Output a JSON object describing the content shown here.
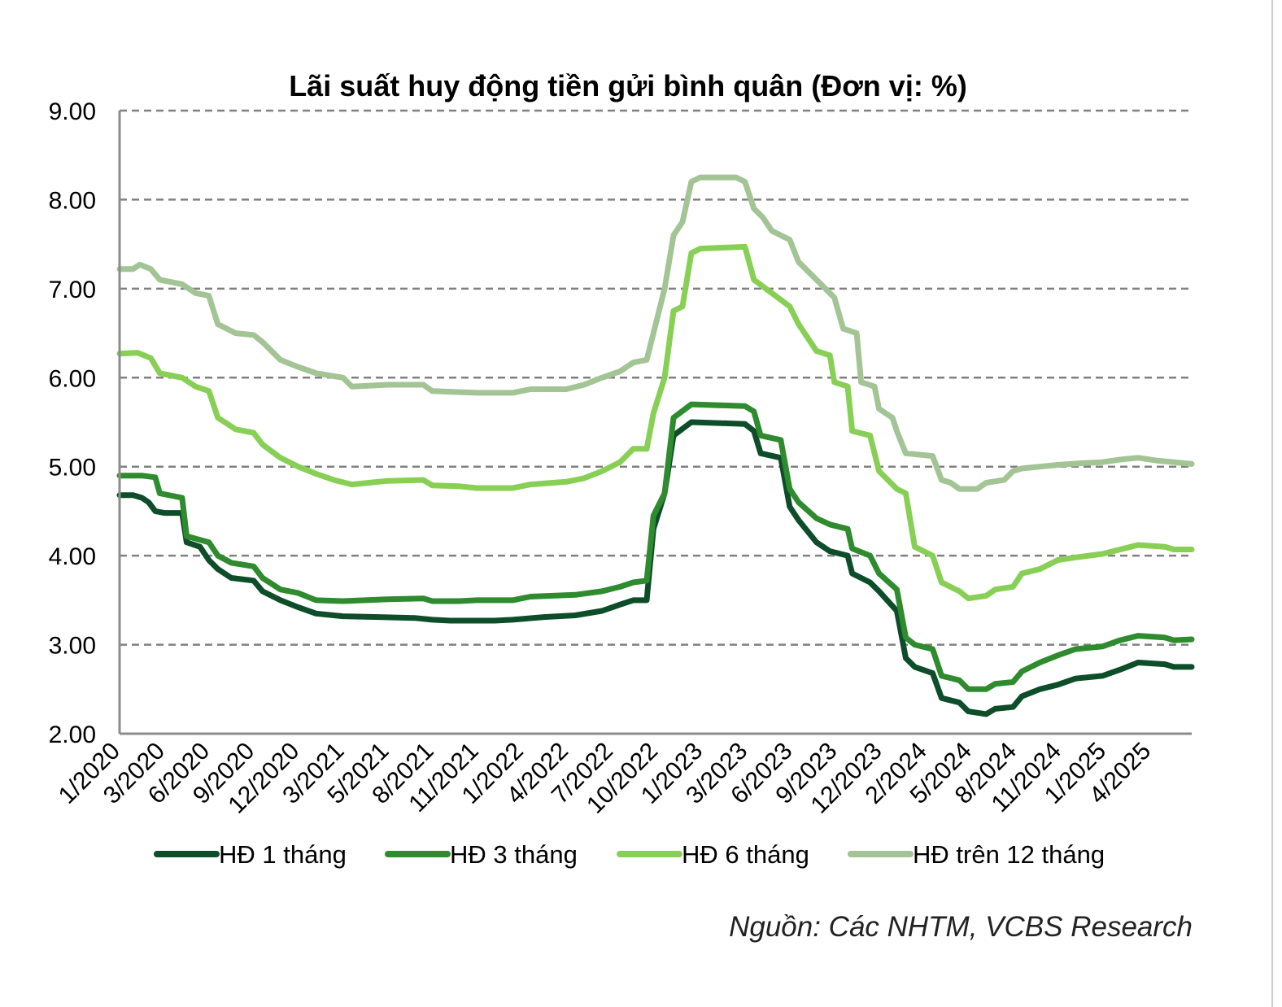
{
  "chart_data": {
    "type": "line",
    "title": "Lãi suất huy động tiền gửi bình quân (Đơn vị: %)",
    "xlabel": "",
    "ylabel": "",
    "ylim": [
      2.0,
      9.0
    ],
    "yticks": [
      "2.00",
      "3.00",
      "4.00",
      "5.00",
      "6.00",
      "7.00",
      "8.00",
      "9.00"
    ],
    "grid": true,
    "legend_position": "bottom",
    "x_tick_labels": [
      "1/2020",
      "3/2020",
      "6/2020",
      "9/2020",
      "12/2020",
      "3/2021",
      "5/2021",
      "8/2021",
      "11/2021",
      "1/2022",
      "4/2022",
      "7/2022",
      "10/2022",
      "1/2023",
      "3/2023",
      "6/2023",
      "9/2023",
      "12/2023",
      "2/2024",
      "5/2024",
      "8/2024",
      "11/2024",
      "1/2025",
      "4/2025"
    ],
    "x_domain": [
      0,
      24
    ],
    "series": [
      {
        "name": "HĐ 1 tháng",
        "color": "#0d4d2a",
        "points": [
          [
            0,
            4.68
          ],
          [
            0.3,
            4.68
          ],
          [
            0.5,
            4.65
          ],
          [
            0.65,
            4.6
          ],
          [
            0.8,
            4.5
          ],
          [
            1.0,
            4.48
          ],
          [
            1.4,
            4.48
          ],
          [
            1.5,
            4.15
          ],
          [
            1.8,
            4.1
          ],
          [
            2.0,
            3.95
          ],
          [
            2.2,
            3.85
          ],
          [
            2.5,
            3.75
          ],
          [
            3.0,
            3.72
          ],
          [
            3.2,
            3.6
          ],
          [
            3.6,
            3.5
          ],
          [
            4.0,
            3.42
          ],
          [
            4.4,
            3.35
          ],
          [
            5.0,
            3.32
          ],
          [
            5.8,
            3.31
          ],
          [
            6.6,
            3.3
          ],
          [
            7.0,
            3.28
          ],
          [
            7.4,
            3.27
          ],
          [
            8.4,
            3.27
          ],
          [
            8.8,
            3.28
          ],
          [
            9.5,
            3.31
          ],
          [
            10.2,
            3.33
          ],
          [
            10.8,
            3.38
          ],
          [
            11.2,
            3.45
          ],
          [
            11.5,
            3.5
          ],
          [
            11.8,
            3.5
          ],
          [
            11.95,
            4.3
          ],
          [
            12.2,
            4.7
          ],
          [
            12.4,
            5.35
          ],
          [
            12.8,
            5.5
          ],
          [
            14.0,
            5.48
          ],
          [
            14.2,
            5.4
          ],
          [
            14.35,
            5.15
          ],
          [
            14.8,
            5.1
          ],
          [
            15.0,
            4.55
          ],
          [
            15.2,
            4.4
          ],
          [
            15.6,
            4.15
          ],
          [
            15.9,
            4.05
          ],
          [
            16.3,
            4.0
          ],
          [
            16.4,
            3.8
          ],
          [
            16.8,
            3.7
          ],
          [
            17.0,
            3.6
          ],
          [
            17.4,
            3.38
          ],
          [
            17.6,
            2.85
          ],
          [
            17.8,
            2.75
          ],
          [
            18.2,
            2.68
          ],
          [
            18.4,
            2.4
          ],
          [
            18.8,
            2.35
          ],
          [
            19.0,
            2.25
          ],
          [
            19.4,
            2.22
          ],
          [
            19.6,
            2.28
          ],
          [
            20.0,
            2.3
          ],
          [
            20.2,
            2.42
          ],
          [
            20.6,
            2.5
          ],
          [
            21.0,
            2.55
          ],
          [
            21.4,
            2.62
          ],
          [
            22.0,
            2.65
          ],
          [
            22.4,
            2.72
          ],
          [
            22.8,
            2.8
          ],
          [
            23.4,
            2.78
          ],
          [
            23.6,
            2.75
          ],
          [
            24.0,
            2.75
          ]
        ]
      },
      {
        "name": "HĐ 3 tháng",
        "color": "#2e8b2e",
        "points": [
          [
            0,
            4.9
          ],
          [
            0.5,
            4.9
          ],
          [
            0.8,
            4.88
          ],
          [
            0.9,
            4.7
          ],
          [
            1.4,
            4.65
          ],
          [
            1.5,
            4.22
          ],
          [
            2.0,
            4.15
          ],
          [
            2.2,
            4.0
          ],
          [
            2.5,
            3.92
          ],
          [
            3.0,
            3.88
          ],
          [
            3.2,
            3.75
          ],
          [
            3.6,
            3.62
          ],
          [
            4.0,
            3.58
          ],
          [
            4.4,
            3.5
          ],
          [
            5.0,
            3.49
          ],
          [
            6.0,
            3.51
          ],
          [
            6.8,
            3.52
          ],
          [
            7.0,
            3.49
          ],
          [
            7.6,
            3.49
          ],
          [
            8.0,
            3.5
          ],
          [
            8.8,
            3.5
          ],
          [
            9.2,
            3.54
          ],
          [
            10.2,
            3.56
          ],
          [
            10.8,
            3.6
          ],
          [
            11.2,
            3.65
          ],
          [
            11.5,
            3.7
          ],
          [
            11.8,
            3.72
          ],
          [
            11.95,
            4.45
          ],
          [
            12.2,
            4.7
          ],
          [
            12.4,
            5.55
          ],
          [
            12.8,
            5.7
          ],
          [
            14.0,
            5.68
          ],
          [
            14.2,
            5.62
          ],
          [
            14.35,
            5.35
          ],
          [
            14.8,
            5.3
          ],
          [
            15.0,
            4.75
          ],
          [
            15.2,
            4.6
          ],
          [
            15.6,
            4.42
          ],
          [
            15.9,
            4.35
          ],
          [
            16.3,
            4.3
          ],
          [
            16.4,
            4.08
          ],
          [
            16.8,
            4.0
          ],
          [
            17.0,
            3.8
          ],
          [
            17.4,
            3.62
          ],
          [
            17.6,
            3.08
          ],
          [
            17.8,
            3.0
          ],
          [
            18.2,
            2.95
          ],
          [
            18.4,
            2.65
          ],
          [
            18.8,
            2.6
          ],
          [
            19.0,
            2.5
          ],
          [
            19.4,
            2.5
          ],
          [
            19.6,
            2.56
          ],
          [
            20.0,
            2.58
          ],
          [
            20.2,
            2.7
          ],
          [
            20.6,
            2.8
          ],
          [
            21.0,
            2.88
          ],
          [
            21.4,
            2.95
          ],
          [
            22.0,
            2.98
          ],
          [
            22.4,
            3.05
          ],
          [
            22.8,
            3.1
          ],
          [
            23.4,
            3.08
          ],
          [
            23.6,
            3.05
          ],
          [
            24.0,
            3.06
          ]
        ]
      },
      {
        "name": "HĐ 6 tháng",
        "color": "#88d055",
        "points": [
          [
            0,
            6.27
          ],
          [
            0.4,
            6.28
          ],
          [
            0.7,
            6.22
          ],
          [
            0.9,
            6.05
          ],
          [
            1.4,
            6.0
          ],
          [
            1.7,
            5.9
          ],
          [
            2.0,
            5.85
          ],
          [
            2.2,
            5.55
          ],
          [
            2.6,
            5.42
          ],
          [
            3.0,
            5.38
          ],
          [
            3.2,
            5.25
          ],
          [
            3.6,
            5.1
          ],
          [
            4.0,
            5.0
          ],
          [
            4.4,
            4.92
          ],
          [
            4.8,
            4.85
          ],
          [
            5.2,
            4.8
          ],
          [
            5.6,
            4.82
          ],
          [
            6.0,
            4.84
          ],
          [
            6.8,
            4.85
          ],
          [
            7.0,
            4.79
          ],
          [
            7.6,
            4.78
          ],
          [
            8.0,
            4.76
          ],
          [
            8.8,
            4.76
          ],
          [
            9.2,
            4.8
          ],
          [
            10.0,
            4.83
          ],
          [
            10.4,
            4.87
          ],
          [
            10.8,
            4.95
          ],
          [
            11.2,
            5.05
          ],
          [
            11.5,
            5.2
          ],
          [
            11.8,
            5.2
          ],
          [
            11.95,
            5.6
          ],
          [
            12.2,
            6.0
          ],
          [
            12.4,
            6.75
          ],
          [
            12.6,
            6.8
          ],
          [
            12.8,
            7.4
          ],
          [
            13.0,
            7.45
          ],
          [
            14.0,
            7.47
          ],
          [
            14.2,
            7.1
          ],
          [
            14.6,
            6.95
          ],
          [
            15.0,
            6.8
          ],
          [
            15.2,
            6.6
          ],
          [
            15.6,
            6.3
          ],
          [
            15.9,
            6.25
          ],
          [
            16.0,
            5.95
          ],
          [
            16.3,
            5.9
          ],
          [
            16.4,
            5.4
          ],
          [
            16.8,
            5.35
          ],
          [
            17.0,
            4.95
          ],
          [
            17.4,
            4.75
          ],
          [
            17.6,
            4.7
          ],
          [
            17.8,
            4.1
          ],
          [
            18.2,
            4.0
          ],
          [
            18.4,
            3.7
          ],
          [
            18.8,
            3.6
          ],
          [
            19.0,
            3.52
          ],
          [
            19.4,
            3.55
          ],
          [
            19.6,
            3.62
          ],
          [
            20.0,
            3.65
          ],
          [
            20.2,
            3.8
          ],
          [
            20.6,
            3.85
          ],
          [
            21.0,
            3.95
          ],
          [
            21.4,
            3.98
          ],
          [
            22.0,
            4.02
          ],
          [
            22.4,
            4.07
          ],
          [
            22.8,
            4.12
          ],
          [
            23.4,
            4.1
          ],
          [
            23.6,
            4.07
          ],
          [
            24.0,
            4.07
          ]
        ]
      },
      {
        "name": "HĐ trên 12 tháng",
        "color": "#a3c495",
        "points": [
          [
            0,
            7.22
          ],
          [
            0.3,
            7.22
          ],
          [
            0.45,
            7.27
          ],
          [
            0.7,
            7.22
          ],
          [
            0.9,
            7.1
          ],
          [
            1.4,
            7.05
          ],
          [
            1.7,
            6.95
          ],
          [
            2.0,
            6.92
          ],
          [
            2.2,
            6.6
          ],
          [
            2.6,
            6.5
          ],
          [
            3.0,
            6.48
          ],
          [
            3.2,
            6.4
          ],
          [
            3.6,
            6.2
          ],
          [
            4.0,
            6.12
          ],
          [
            4.4,
            6.05
          ],
          [
            5.0,
            6.0
          ],
          [
            5.2,
            5.9
          ],
          [
            6.0,
            5.92
          ],
          [
            6.8,
            5.92
          ],
          [
            7.0,
            5.85
          ],
          [
            8.0,
            5.83
          ],
          [
            8.8,
            5.83
          ],
          [
            9.2,
            5.87
          ],
          [
            10.0,
            5.87
          ],
          [
            10.4,
            5.92
          ],
          [
            10.8,
            6.0
          ],
          [
            11.2,
            6.07
          ],
          [
            11.5,
            6.17
          ],
          [
            11.8,
            6.2
          ],
          [
            11.95,
            6.5
          ],
          [
            12.2,
            7.0
          ],
          [
            12.4,
            7.6
          ],
          [
            12.6,
            7.75
          ],
          [
            12.8,
            8.2
          ],
          [
            13.0,
            8.25
          ],
          [
            13.8,
            8.25
          ],
          [
            14.0,
            8.2
          ],
          [
            14.2,
            7.9
          ],
          [
            14.4,
            7.8
          ],
          [
            14.6,
            7.65
          ],
          [
            15.0,
            7.55
          ],
          [
            15.2,
            7.3
          ],
          [
            15.6,
            7.1
          ],
          [
            16.0,
            6.9
          ],
          [
            16.2,
            6.55
          ],
          [
            16.5,
            6.5
          ],
          [
            16.6,
            5.95
          ],
          [
            16.9,
            5.9
          ],
          [
            17.0,
            5.65
          ],
          [
            17.3,
            5.55
          ],
          [
            17.4,
            5.4
          ],
          [
            17.6,
            5.15
          ],
          [
            18.0,
            5.13
          ],
          [
            18.2,
            5.12
          ],
          [
            18.4,
            4.85
          ],
          [
            18.6,
            4.82
          ],
          [
            18.8,
            4.75
          ],
          [
            19.2,
            4.75
          ],
          [
            19.4,
            4.82
          ],
          [
            19.8,
            4.85
          ],
          [
            20.0,
            4.95
          ],
          [
            20.2,
            4.98
          ],
          [
            20.6,
            5.0
          ],
          [
            21.0,
            5.02
          ],
          [
            21.6,
            5.04
          ],
          [
            22.0,
            5.05
          ],
          [
            22.4,
            5.08
          ],
          [
            22.8,
            5.1
          ],
          [
            23.2,
            5.07
          ],
          [
            23.6,
            5.05
          ],
          [
            24.0,
            5.03
          ]
        ]
      }
    ]
  },
  "source_note": "Nguồn: Các NHTM, VCBS Research"
}
